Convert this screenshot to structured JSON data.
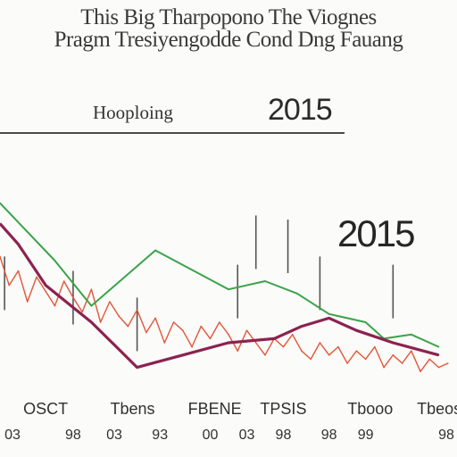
{
  "header": {
    "title_line1": "This Big Tharpopono The Viognes",
    "title_line2": "Pragm Tresiyengodde Cond Dng Fauang",
    "subheading": "Hooploing",
    "year_top": "2015",
    "year_mid": "2015"
  },
  "colors": {
    "red": "#e2563a",
    "green": "#3aa34a",
    "maroon": "#8c2250",
    "spike": "#555555"
  },
  "chart_data": {
    "type": "line",
    "title": "",
    "xlabel": "",
    "ylabel": "",
    "xlim": [
      0,
      10
    ],
    "ylim": [
      0,
      100
    ],
    "categories": [
      "OSCT",
      "Tbens",
      "FBENE",
      "TPSIS",
      "Tbooo",
      "Tbeoss"
    ],
    "category_positions": [
      1.0,
      2.9,
      4.7,
      6.2,
      8.1,
      9.7
    ],
    "x_numbers": [
      "03",
      "98",
      "03",
      "93",
      "00",
      "03",
      "98",
      "98",
      "99",
      "98"
    ],
    "x_number_positions": [
      0.2,
      1.6,
      2.5,
      3.5,
      4.6,
      5.4,
      6.2,
      7.2,
      8.0,
      9.8
    ],
    "series": [
      {
        "name": "",
        "color": "red",
        "x": [
          0.0,
          0.2,
          0.4,
          0.6,
          0.8,
          1.0,
          1.2,
          1.4,
          1.6,
          1.8,
          2.0,
          2.2,
          2.4,
          2.6,
          2.8,
          3.0,
          3.2,
          3.4,
          3.6,
          3.8,
          4.0,
          4.2,
          4.4,
          4.6,
          4.8,
          5.0,
          5.2,
          5.4,
          5.6,
          5.8,
          6.0,
          6.2,
          6.4,
          6.6,
          6.8,
          7.0,
          7.2,
          7.4,
          7.6,
          7.8,
          8.0,
          8.2,
          8.4,
          8.6,
          8.8,
          9.0,
          9.2,
          9.4,
          9.6,
          9.8
        ],
        "y": [
          62,
          48,
          55,
          40,
          52,
          45,
          38,
          50,
          42,
          35,
          46,
          30,
          40,
          33,
          28,
          36,
          25,
          32,
          20,
          30,
          26,
          18,
          28,
          22,
          30,
          24,
          16,
          26,
          20,
          14,
          22,
          18,
          24,
          16,
          12,
          20,
          14,
          18,
          10,
          16,
          12,
          18,
          8,
          14,
          10,
          16,
          6,
          12,
          8,
          10
        ]
      },
      {
        "name": "",
        "color": "green",
        "x": [
          0.0,
          0.6,
          1.2,
          2.0,
          3.4,
          5.0,
          5.8,
          6.5,
          7.2,
          8.0,
          8.4,
          9.0,
          9.6
        ],
        "y": [
          88,
          74,
          60,
          38,
          65,
          46,
          50,
          44,
          34,
          30,
          22,
          24,
          18
        ]
      },
      {
        "name": "",
        "color": "maroon",
        "x": [
          0.0,
          0.4,
          1.0,
          2.0,
          3.0,
          4.0,
          5.0,
          6.0,
          6.6,
          7.2,
          7.8,
          8.6,
          9.6
        ],
        "y": [
          78,
          68,
          48,
          30,
          8,
          14,
          20,
          22,
          28,
          32,
          26,
          20,
          14
        ]
      }
    ],
    "spikes": [
      {
        "x": 0.1,
        "top": 62
      },
      {
        "x": 5.6,
        "top": 82
      },
      {
        "x": 6.3,
        "top": 80
      },
      {
        "x": 7.0,
        "top": 62
      },
      {
        "x": 5.2,
        "top": 58
      },
      {
        "x": 8.6,
        "top": 58
      },
      {
        "x": 3.0,
        "top": 42
      },
      {
        "x": 1.6,
        "top": 55
      }
    ]
  }
}
